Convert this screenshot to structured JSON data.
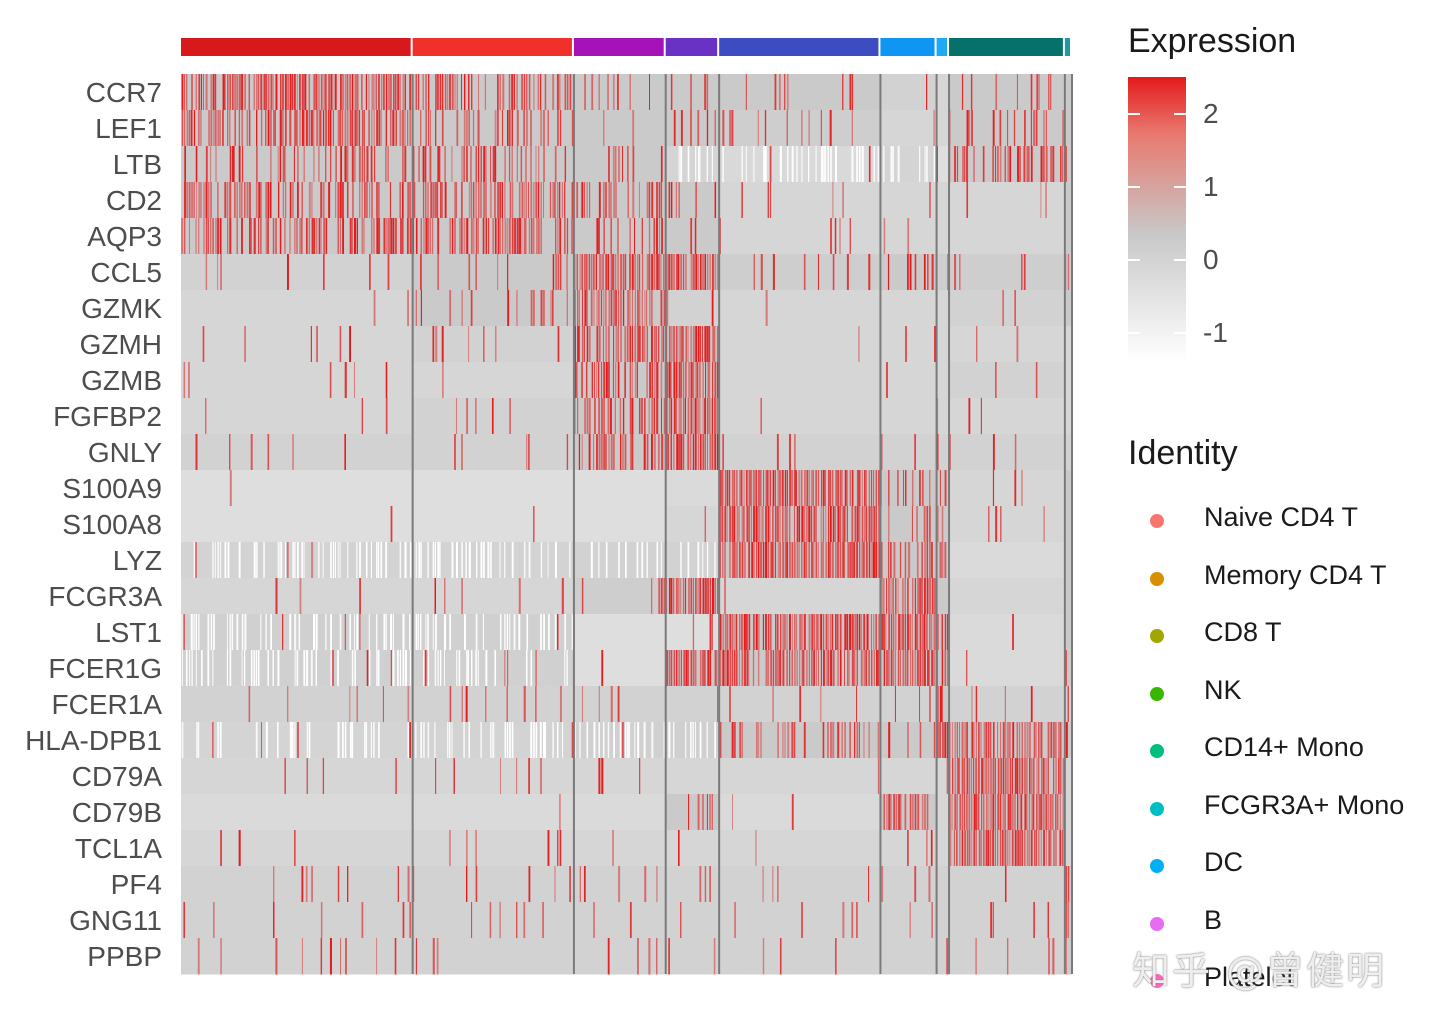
{
  "chart_data": {
    "type": "heatmap",
    "title": "",
    "xlabel": "",
    "ylabel": "",
    "genes": [
      "CCR7",
      "LEF1",
      "LTB",
      "CD2",
      "AQP3",
      "CCL5",
      "GZMK",
      "GZMH",
      "GZMB",
      "FGFBP2",
      "GNLY",
      "S100A9",
      "S100A8",
      "LYZ",
      "FCGR3A",
      "LST1",
      "FCER1G",
      "FCER1A",
      "HLA-DPB1",
      "CD79A",
      "CD79B",
      "TCL1A",
      "PF4",
      "GNG11",
      "PPBP"
    ],
    "groups": [
      {
        "name": "Naive CD4 T",
        "proportion": 0.26,
        "color": "#d7191c"
      },
      {
        "name": "Memory CD4 T",
        "proportion": 0.181,
        "color": "#f0312b"
      },
      {
        "name": "CD8 T",
        "proportion": 0.103,
        "color": "#a313b7"
      },
      {
        "name": "NK",
        "proportion": 0.06,
        "color": "#6a32c4"
      },
      {
        "name": "CD14+ Mono",
        "proportion": 0.181,
        "color": "#3d4cc1"
      },
      {
        "name": "FCGR3A+ Mono",
        "proportion": 0.063,
        "color": "#0f96f2"
      },
      {
        "name": "DC",
        "proportion": 0.014,
        "color": "#22a9f5"
      },
      {
        "name": "B",
        "proportion": 0.13,
        "color": "#06706b"
      },
      {
        "name": "Platelet",
        "proportion": 0.008,
        "color": "#1f9aa1"
      }
    ],
    "mean_expression": [
      [
        1.6,
        1.2,
        0.2,
        0.0,
        0.0,
        -0.2,
        -0.3,
        0.3,
        0.0
      ],
      [
        1.6,
        1.1,
        0.1,
        0.0,
        -0.1,
        -0.3,
        -0.3,
        0.3,
        0.0
      ],
      [
        0.9,
        0.9,
        0.3,
        -0.9,
        -1.2,
        -0.9,
        -0.5,
        0.8,
        0.0
      ],
      [
        1.1,
        1.4,
        1.0,
        0.5,
        -0.3,
        -0.3,
        -0.3,
        -0.3,
        0.0
      ],
      [
        1.2,
        1.4,
        0.2,
        0.2,
        -0.3,
        -0.3,
        -0.3,
        -0.3,
        0.0
      ],
      [
        -0.2,
        0.0,
        2.2,
        2.0,
        -0.1,
        0.1,
        -0.1,
        -0.1,
        2.4
      ],
      [
        -0.3,
        0.2,
        2.5,
        -0.2,
        -0.3,
        -0.3,
        -0.3,
        -0.2,
        0.0
      ],
      [
        -0.3,
        -0.2,
        1.9,
        2.5,
        -0.3,
        -0.3,
        -0.3,
        -0.3,
        -0.3
      ],
      [
        -0.3,
        -0.3,
        1.2,
        2.5,
        -0.3,
        -0.3,
        -0.3,
        -0.2,
        -0.3
      ],
      [
        -0.3,
        -0.2,
        1.2,
        2.5,
        -0.3,
        -0.3,
        -0.3,
        -0.3,
        -0.3
      ],
      [
        -0.2,
        -0.2,
        1.4,
        2.5,
        -0.2,
        -0.2,
        -0.2,
        -0.2,
        -0.2
      ],
      [
        -0.5,
        -0.5,
        -0.5,
        -0.4,
        2.3,
        0.7,
        0.6,
        -0.3,
        0.0
      ],
      [
        -0.5,
        -0.5,
        -0.5,
        -0.3,
        2.3,
        0.5,
        0.5,
        -0.3,
        0.0
      ],
      [
        -0.8,
        -0.8,
        -0.7,
        -0.7,
        2.0,
        1.3,
        1.9,
        -0.4,
        0.0
      ],
      [
        -0.3,
        -0.3,
        -0.1,
        2.3,
        -0.3,
        2.5,
        0.0,
        -0.3,
        0.0
      ],
      [
        -0.6,
        -0.6,
        -0.5,
        -0.5,
        1.8,
        2.5,
        1.5,
        -0.4,
        0.0
      ],
      [
        -0.6,
        -0.6,
        -0.5,
        1.8,
        1.8,
        2.4,
        1.5,
        -0.4,
        0.0
      ],
      [
        -0.2,
        -0.2,
        -0.2,
        -0.2,
        -0.2,
        -0.2,
        2.5,
        -0.2,
        -0.2
      ],
      [
        -0.9,
        -0.8,
        -0.6,
        -0.6,
        0.5,
        0.3,
        2.3,
        2.0,
        0.0
      ],
      [
        -0.3,
        -0.3,
        -0.3,
        -0.3,
        -0.3,
        -0.3,
        -0.3,
        2.5,
        -0.3
      ],
      [
        -0.4,
        -0.4,
        -0.4,
        0.5,
        -0.4,
        1.2,
        -0.3,
        2.4,
        -0.3
      ],
      [
        -0.3,
        -0.3,
        -0.3,
        -0.3,
        -0.3,
        -0.3,
        -0.3,
        2.3,
        -0.3
      ],
      [
        -0.2,
        -0.2,
        -0.2,
        -0.2,
        -0.2,
        -0.2,
        -0.2,
        -0.2,
        2.5
      ],
      [
        -0.2,
        -0.2,
        -0.2,
        -0.2,
        -0.2,
        -0.2,
        -0.2,
        -0.2,
        2.5
      ],
      [
        -0.2,
        -0.2,
        -0.2,
        -0.2,
        -0.2,
        -0.2,
        -0.2,
        -0.2,
        2.5
      ]
    ],
    "color_scale": {
      "low": "#ffffff",
      "mid": "#c8c8c8",
      "high": "#e41a1c",
      "min": -1.4,
      "max": 2.5
    }
  },
  "legend_expression": {
    "title": "Expression",
    "ticks": [
      {
        "value": 2,
        "label": "2"
      },
      {
        "value": 1,
        "label": "1"
      },
      {
        "value": 0,
        "label": "0"
      },
      {
        "value": -1,
        "label": "-1"
      }
    ],
    "range": [
      -1.4,
      2.5
    ]
  },
  "legend_identity": {
    "title": "Identity",
    "items": [
      {
        "label": "Naive CD4 T",
        "color": "#f8766d"
      },
      {
        "label": "Memory CD4 T",
        "color": "#d89000"
      },
      {
        "label": "CD8 T",
        "color": "#a3a500"
      },
      {
        "label": "NK",
        "color": "#39b600"
      },
      {
        "label": "CD14+ Mono",
        "color": "#00bf7d"
      },
      {
        "label": "FCGR3A+ Mono",
        "color": "#00bfc4"
      },
      {
        "label": "DC",
        "color": "#00b0f6"
      },
      {
        "label": "B",
        "color": "#e76bf3"
      },
      {
        "label": "Platelet",
        "color": "#ff62bc"
      }
    ]
  },
  "watermark": "知乎 @曾健明"
}
